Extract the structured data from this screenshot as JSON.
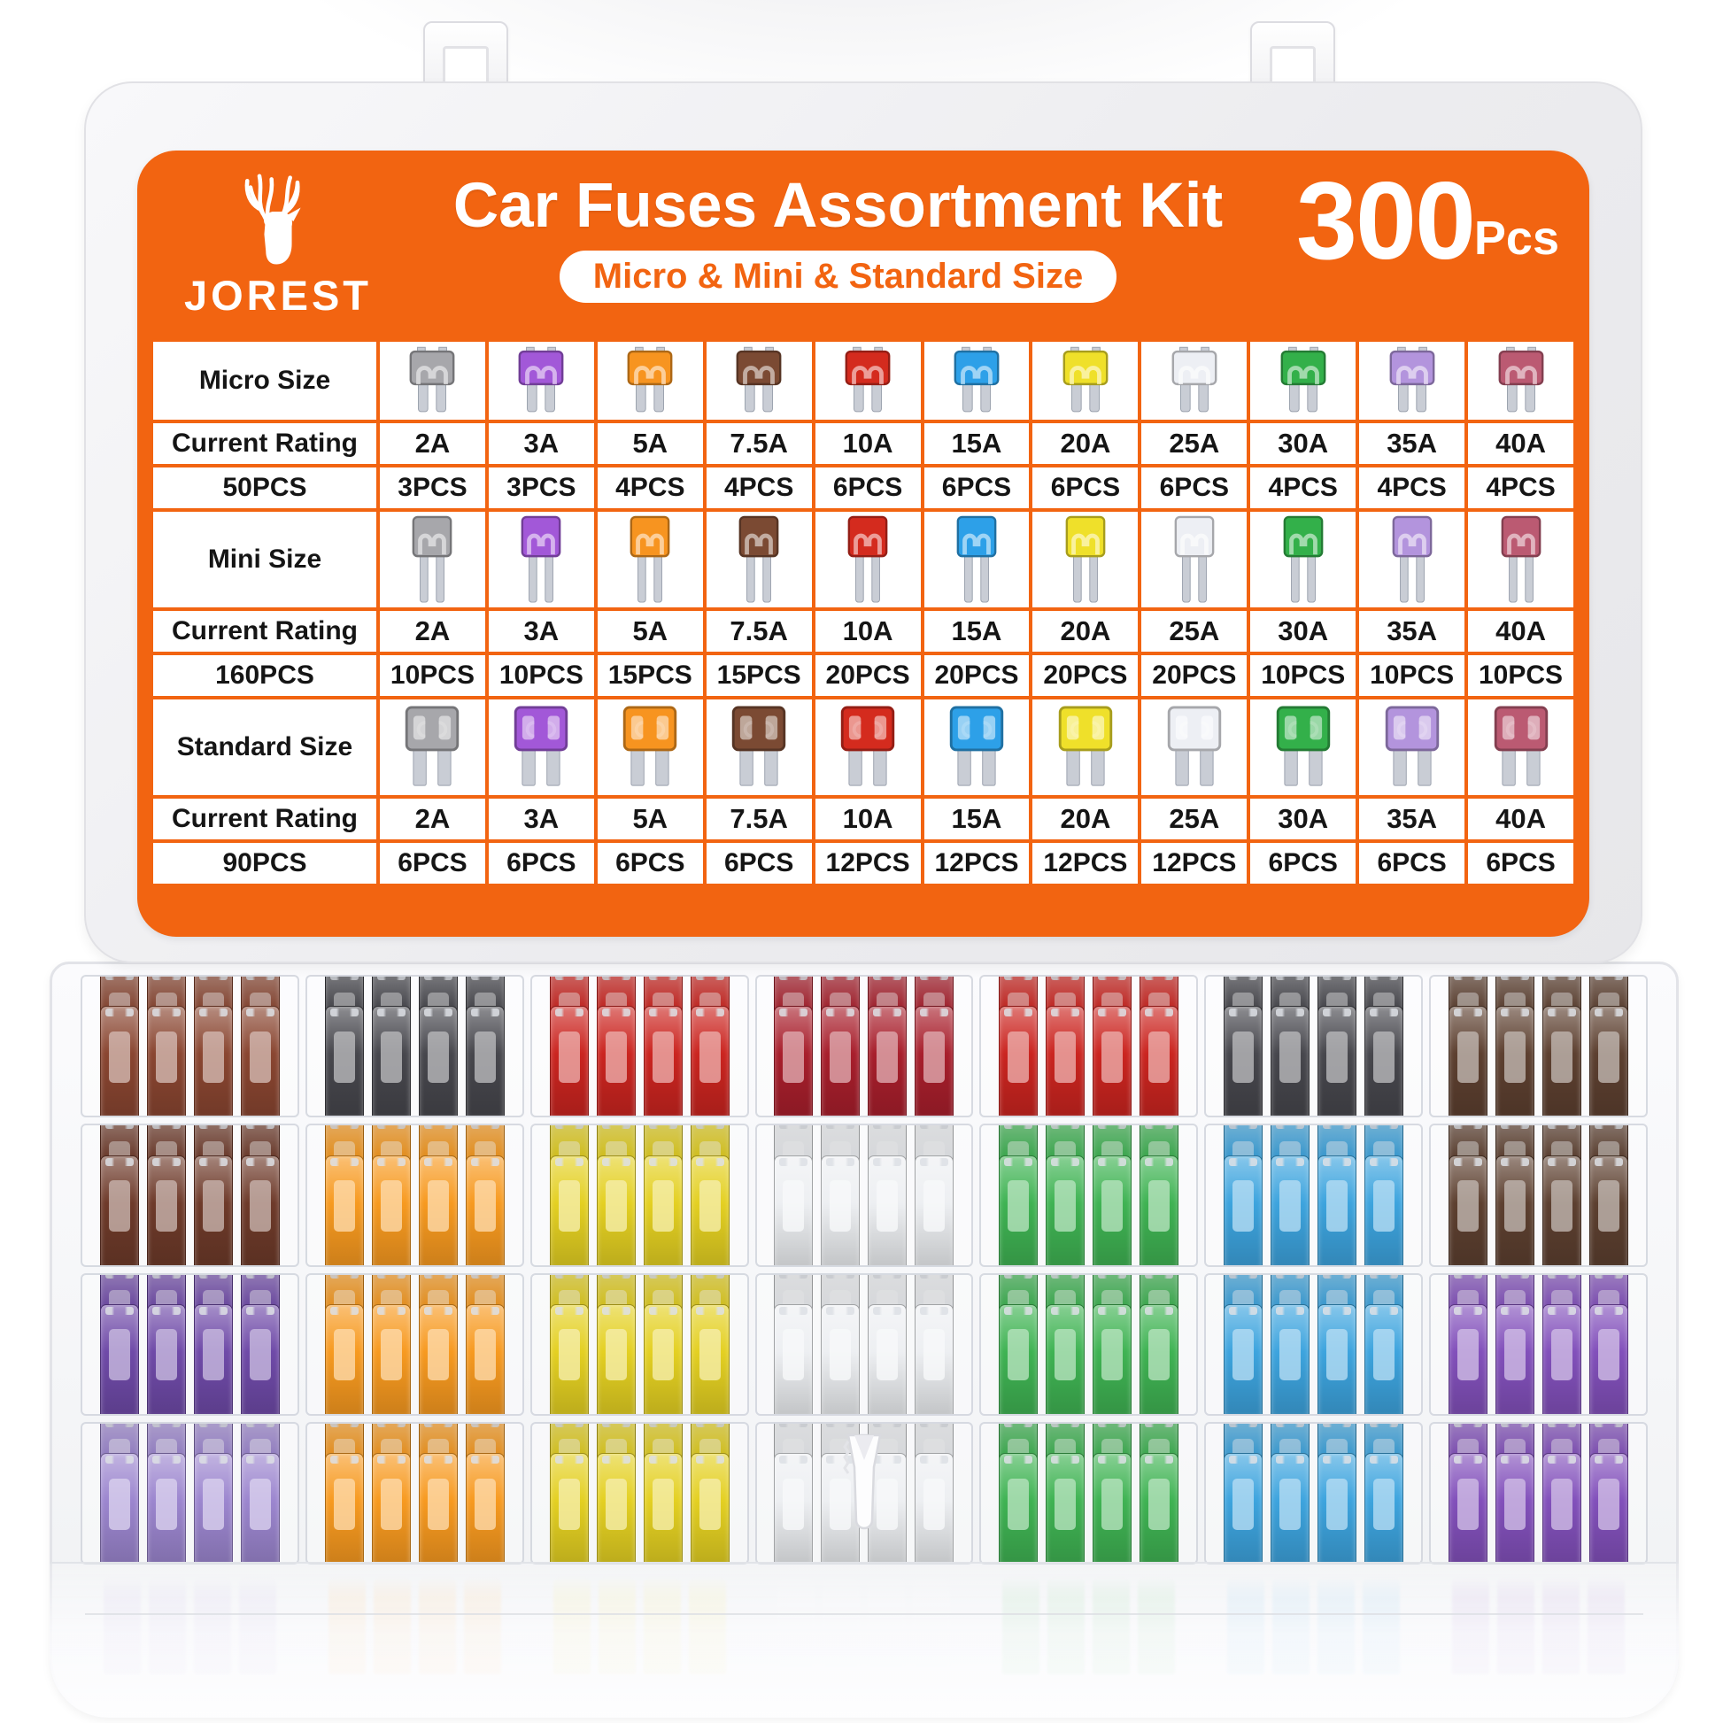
{
  "brand": {
    "name": "JOREST",
    "logo_icon": "deer-logo"
  },
  "header": {
    "title": "Car Fuses Assortment Kit",
    "size_badge": "Micro & Mini & Standard Size",
    "piece_count": "300",
    "piece_unit": "Pcs"
  },
  "colors": {
    "accent_orange": "#F26411",
    "label_text": "#FFFFFF",
    "table_text": "#151515",
    "lid_gray": "#ECECEF",
    "metal_silver": "#C9CDD5"
  },
  "table": {
    "amp_headers": [
      "2A",
      "3A",
      "5A",
      "7.5A",
      "10A",
      "15A",
      "20A",
      "25A",
      "30A",
      "35A",
      "40A"
    ],
    "fuse_colors": [
      "#A7A7AB",
      "#A258D8",
      "#F79420",
      "#7B4A33",
      "#D42B1E",
      "#2DA0E8",
      "#EFE02A",
      "#EDEFF4",
      "#33B04A",
      "#B394DD",
      "#BB5A72"
    ],
    "sections": [
      {
        "size_label": "Micro Size",
        "fuse_type": "micro",
        "rating_label": "Current Rating",
        "total_label": "50PCS",
        "counts": [
          "3PCS",
          "3PCS",
          "4PCS",
          "4PCS",
          "6PCS",
          "6PCS",
          "6PCS",
          "6PCS",
          "4PCS",
          "4PCS",
          "4PCS"
        ]
      },
      {
        "size_label": "Mini Size",
        "fuse_type": "mini",
        "rating_label": "Current Rating",
        "total_label": "160PCS",
        "counts": [
          "10PCS",
          "10PCS",
          "15PCS",
          "15PCS",
          "20PCS",
          "20PCS",
          "20PCS",
          "20PCS",
          "10PCS",
          "10PCS",
          "10PCS"
        ]
      },
      {
        "size_label": "Standard Size",
        "fuse_type": "standard",
        "rating_label": "Current Rating",
        "total_label": "90PCS",
        "counts": [
          "6PCS",
          "6PCS",
          "6PCS",
          "6PCS",
          "12PCS",
          "12PCS",
          "12PCS",
          "12PCS",
          "6PCS",
          "6PCS",
          "6PCS"
        ]
      }
    ]
  },
  "box": {
    "palette": {
      "brown1": "#8A4631",
      "brown2": "#6E3A2A",
      "black": "#47474D",
      "red": "#CB2520",
      "darkred": "#A81F2C",
      "orange": "#F79A20",
      "yellow": "#E4D022",
      "white": "#EDEFF2",
      "green": "#3FB353",
      "blue": "#3DA4DE",
      "darkbrown": "#5D4030",
      "purple": "#6F4AA8",
      "lavender": "#9C86CF",
      "purple2": "#8250BB"
    },
    "columns": [
      {
        "cells": [
          "brown1",
          "brown2",
          "purple",
          "lavender"
        ]
      },
      {
        "cells": [
          "black",
          "orange",
          "orange",
          "orange"
        ]
      },
      {
        "cells": [
          "red",
          "yellow",
          "yellow",
          "yellow"
        ]
      },
      {
        "cells": [
          "darkred",
          "white",
          "white",
          "white"
        ],
        "puller_row": 3
      },
      {
        "cells": [
          "red",
          "green",
          "green",
          "green"
        ]
      },
      {
        "cells": [
          "black",
          "blue",
          "blue",
          "blue"
        ]
      },
      {
        "cells": [
          "darkbrown",
          "darkbrown",
          "purple2",
          "purple2"
        ]
      }
    ],
    "tool_icon": "fuse-puller-icon"
  }
}
